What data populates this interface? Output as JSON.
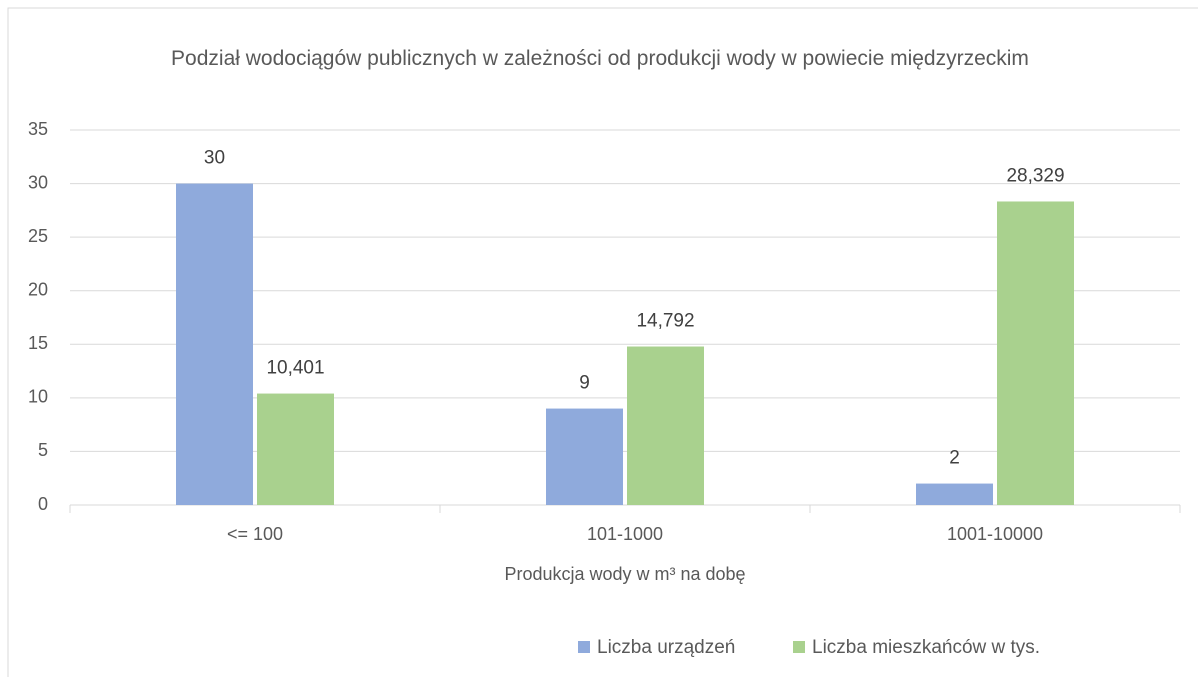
{
  "chart_data": {
    "type": "bar",
    "title": "Podział wodociągów publicznych w zależności od produkcji wody w powiecie międzyrzeckim",
    "x_label": "Produkcja wody w m³ na dobę",
    "categories": [
      "<= 100",
      "101-1000",
      "1001-10000"
    ],
    "series": [
      {
        "name": "Liczba urządzeń",
        "color": "#8faadc",
        "values": [
          30,
          9,
          2
        ]
      },
      {
        "name": "Liczba mieszkańców w tys.",
        "color": "#a9d18e",
        "values": [
          10.401,
          14.792,
          28.329
        ],
        "value_labels": [
          "10,401",
          "14,792",
          "28,329"
        ]
      }
    ],
    "ylim": [
      0,
      35
    ],
    "yticks": [
      0,
      5,
      10,
      15,
      20,
      25,
      30,
      35
    ],
    "grid": true,
    "legend": "bottom"
  }
}
